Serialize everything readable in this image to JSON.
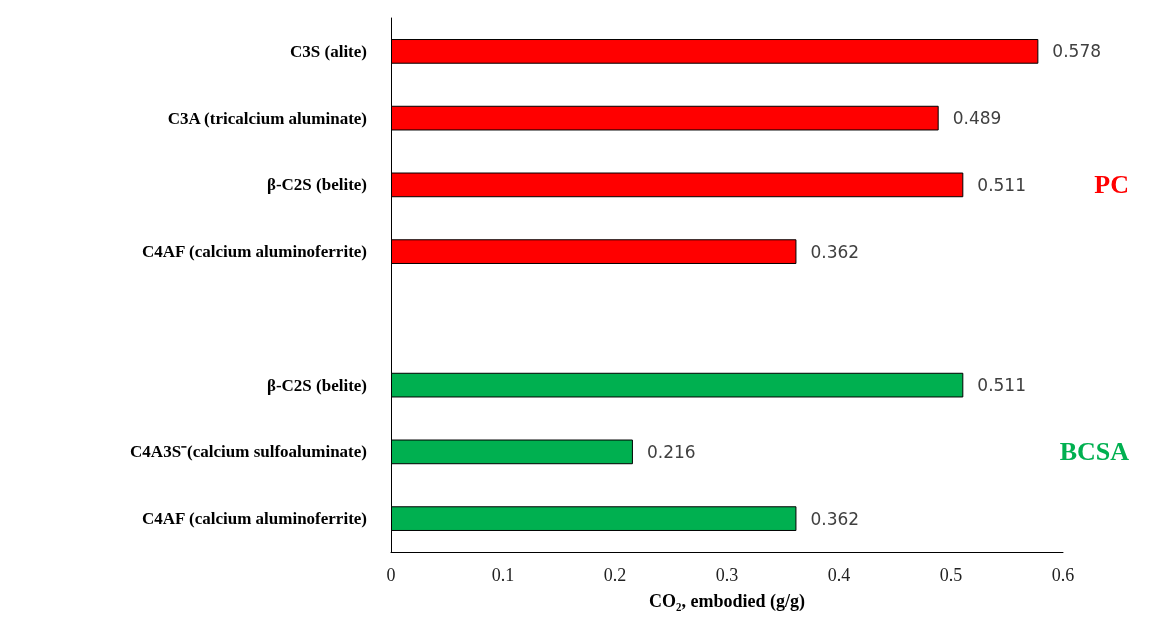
{
  "chart_data": {
    "type": "bar",
    "orientation": "horizontal",
    "xlabel": "CO₂, embodied (g/g)",
    "categories": [
      "C3S (alite)",
      "C3A (tricalcium aluminate)",
      "β-C2S (belite)",
      "C4AF (calcium aluminoferrite)",
      null,
      "β-C2S (belite)",
      "C4A3S⁻(calcium sulfoaluminate)",
      "C4AF (calcium aluminoferrite)"
    ],
    "series": [
      {
        "name": "PC",
        "color": "#ff0000",
        "values": [
          0.578,
          0.489,
          0.511,
          0.362,
          null,
          null,
          null,
          null
        ]
      },
      {
        "name": "BCSA",
        "color": "#00b050",
        "values": [
          null,
          null,
          null,
          null,
          null,
          0.511,
          0.216,
          0.362
        ]
      }
    ],
    "xlim": [
      0,
      0.6
    ],
    "xticks": [
      0,
      0.1,
      0.2,
      0.3,
      0.4,
      0.5,
      0.6
    ],
    "data_labels": true
  }
}
